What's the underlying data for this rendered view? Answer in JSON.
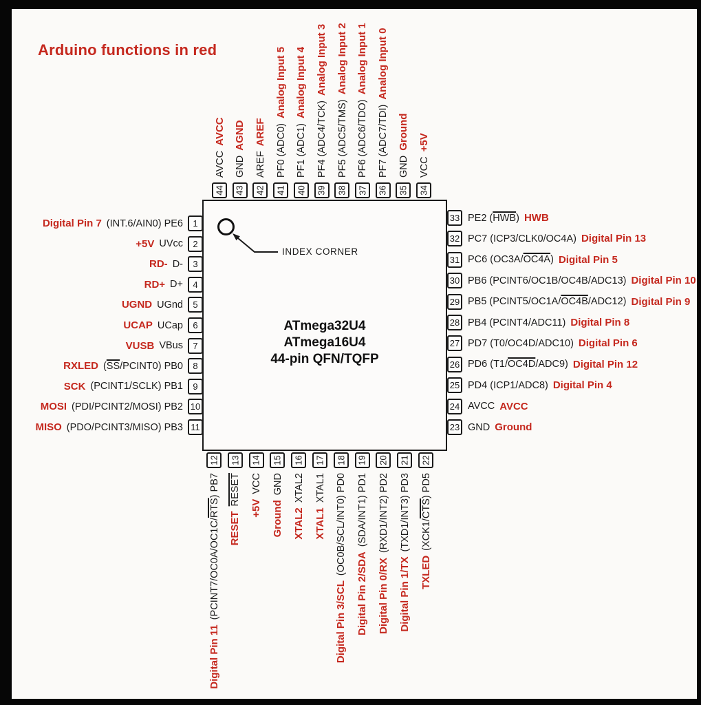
{
  "title": "Arduino functions in red",
  "colors": {
    "accent_red": "#c5291f",
    "text_black": "#1b1b1b",
    "background": "#fbfaf8",
    "frame": "#060606"
  },
  "chip": {
    "line1": "ATmega32U4",
    "line2": "ATmega16U4",
    "line3": "44-pin QFN/TQFP",
    "index_label": "INDEX CORNER"
  },
  "pins": {
    "top": [
      {
        "n": "44",
        "name": "AVCC",
        "fn": "AVCC"
      },
      {
        "n": "43",
        "name": "GND",
        "fn": "AGND"
      },
      {
        "n": "42",
        "name": "AREF",
        "fn": "AREF"
      },
      {
        "n": "41",
        "name": "PF0 (ADC0)",
        "fn": "Analog Input 5"
      },
      {
        "n": "40",
        "name": "PF1 (ADC1)",
        "fn": "Analog Input 4"
      },
      {
        "n": "39",
        "name": "PF4 (ADC4/TCK)",
        "fn": "Analog Input 3"
      },
      {
        "n": "38",
        "name": "PF5 (ADC5/TMS)",
        "fn": "Analog Input 2"
      },
      {
        "n": "37",
        "name": "PF6 (ADC6/TDO)",
        "fn": "Analog Input 1"
      },
      {
        "n": "36",
        "name": "PF7 (ADC7/TDI)",
        "fn": "Analog Input 0"
      },
      {
        "n": "35",
        "name": "GND",
        "fn": "Ground"
      },
      {
        "n": "34",
        "name": "VCC",
        "fn": "+5V"
      }
    ],
    "left": [
      {
        "n": "1",
        "name": "(INT.6/AIN0) PE6",
        "fn": "Digital Pin 7"
      },
      {
        "n": "2",
        "name": "UVcc",
        "fn": "+5V"
      },
      {
        "n": "3",
        "name": "D-",
        "fn": "RD-"
      },
      {
        "n": "4",
        "name": "D+",
        "fn": "RD+"
      },
      {
        "n": "5",
        "name": "UGnd",
        "fn": "UGND"
      },
      {
        "n": "6",
        "name": "UCap",
        "fn": "UCAP"
      },
      {
        "n": "7",
        "name": "VBus",
        "fn": "VUSB"
      },
      {
        "n": "8",
        "name": "(*SS*/PCINT0) PB0",
        "fn": "RXLED"
      },
      {
        "n": "9",
        "name": "(PCINT1/SCLK) PB1",
        "fn": "SCK"
      },
      {
        "n": "10",
        "name": "(PDI/PCINT2/MOSI) PB2",
        "fn": "MOSI"
      },
      {
        "n": "11",
        "name": "(PDO/PCINT3/MISO) PB3",
        "fn": "MISO"
      }
    ],
    "right": [
      {
        "n": "33",
        "name": "PE2 (*HWB*)",
        "fn": "HWB"
      },
      {
        "n": "32",
        "name": "PC7 (ICP3/CLK0/OC4A)",
        "fn": "Digital Pin 13"
      },
      {
        "n": "31",
        "name": "PC6 (OC3A/*OC4A*)",
        "fn": "Digital Pin 5"
      },
      {
        "n": "30",
        "name": "PB6 (PCINT6/OC1B/OC4B/ADC13)",
        "fn": "Digital Pin 10"
      },
      {
        "n": "29",
        "name": "PB5 (PCINT5/OC1A/*OC4B*/ADC12)",
        "fn": "Digital Pin 9"
      },
      {
        "n": "28",
        "name": "PB4 (PCINT4/ADC11)",
        "fn": "Digital Pin 8"
      },
      {
        "n": "27",
        "name": "PD7 (T0/OC4D/ADC10)",
        "fn": "Digital Pin 6"
      },
      {
        "n": "26",
        "name": "PD6 (T1/*OC4D*/ADC9)",
        "fn": "Digital Pin 12"
      },
      {
        "n": "25",
        "name": "PD4 (ICP1/ADC8)",
        "fn": "Digital Pin 4"
      },
      {
        "n": "24",
        "name": "AVCC",
        "fn": "AVCC"
      },
      {
        "n": "23",
        "name": "GND",
        "fn": "Ground"
      }
    ],
    "bottom": [
      {
        "n": "12",
        "name": "(PCINT7/OC0A/OC1C/*RTS*) PB7",
        "fn": "Digital Pin 11"
      },
      {
        "n": "13",
        "name": "*RESET*",
        "fn": "RESET"
      },
      {
        "n": "14",
        "name": "VCC",
        "fn": "+5V"
      },
      {
        "n": "15",
        "name": "GND",
        "fn": "Ground"
      },
      {
        "n": "16",
        "name": "XTAL2",
        "fn": "XTAL2"
      },
      {
        "n": "17",
        "name": "XTAL1",
        "fn": "XTAL1"
      },
      {
        "n": "18",
        "name": "(OC0B/SCL/INT0) PD0",
        "fn": "Digital Pin 3/SCL"
      },
      {
        "n": "19",
        "name": "(SDA/INT1) PD1",
        "fn": "Digital Pin 2/SDA"
      },
      {
        "n": "20",
        "name": "(RXD1/INT2) PD2",
        "fn": "Digital Pin 0/RX"
      },
      {
        "n": "21",
        "name": "(TXD1/INT3) PD3",
        "fn": "Digital Pin 1/TX"
      },
      {
        "n": "22",
        "name": "(XCK1/*CTS*) PD5",
        "fn": "TXLED"
      }
    ]
  }
}
